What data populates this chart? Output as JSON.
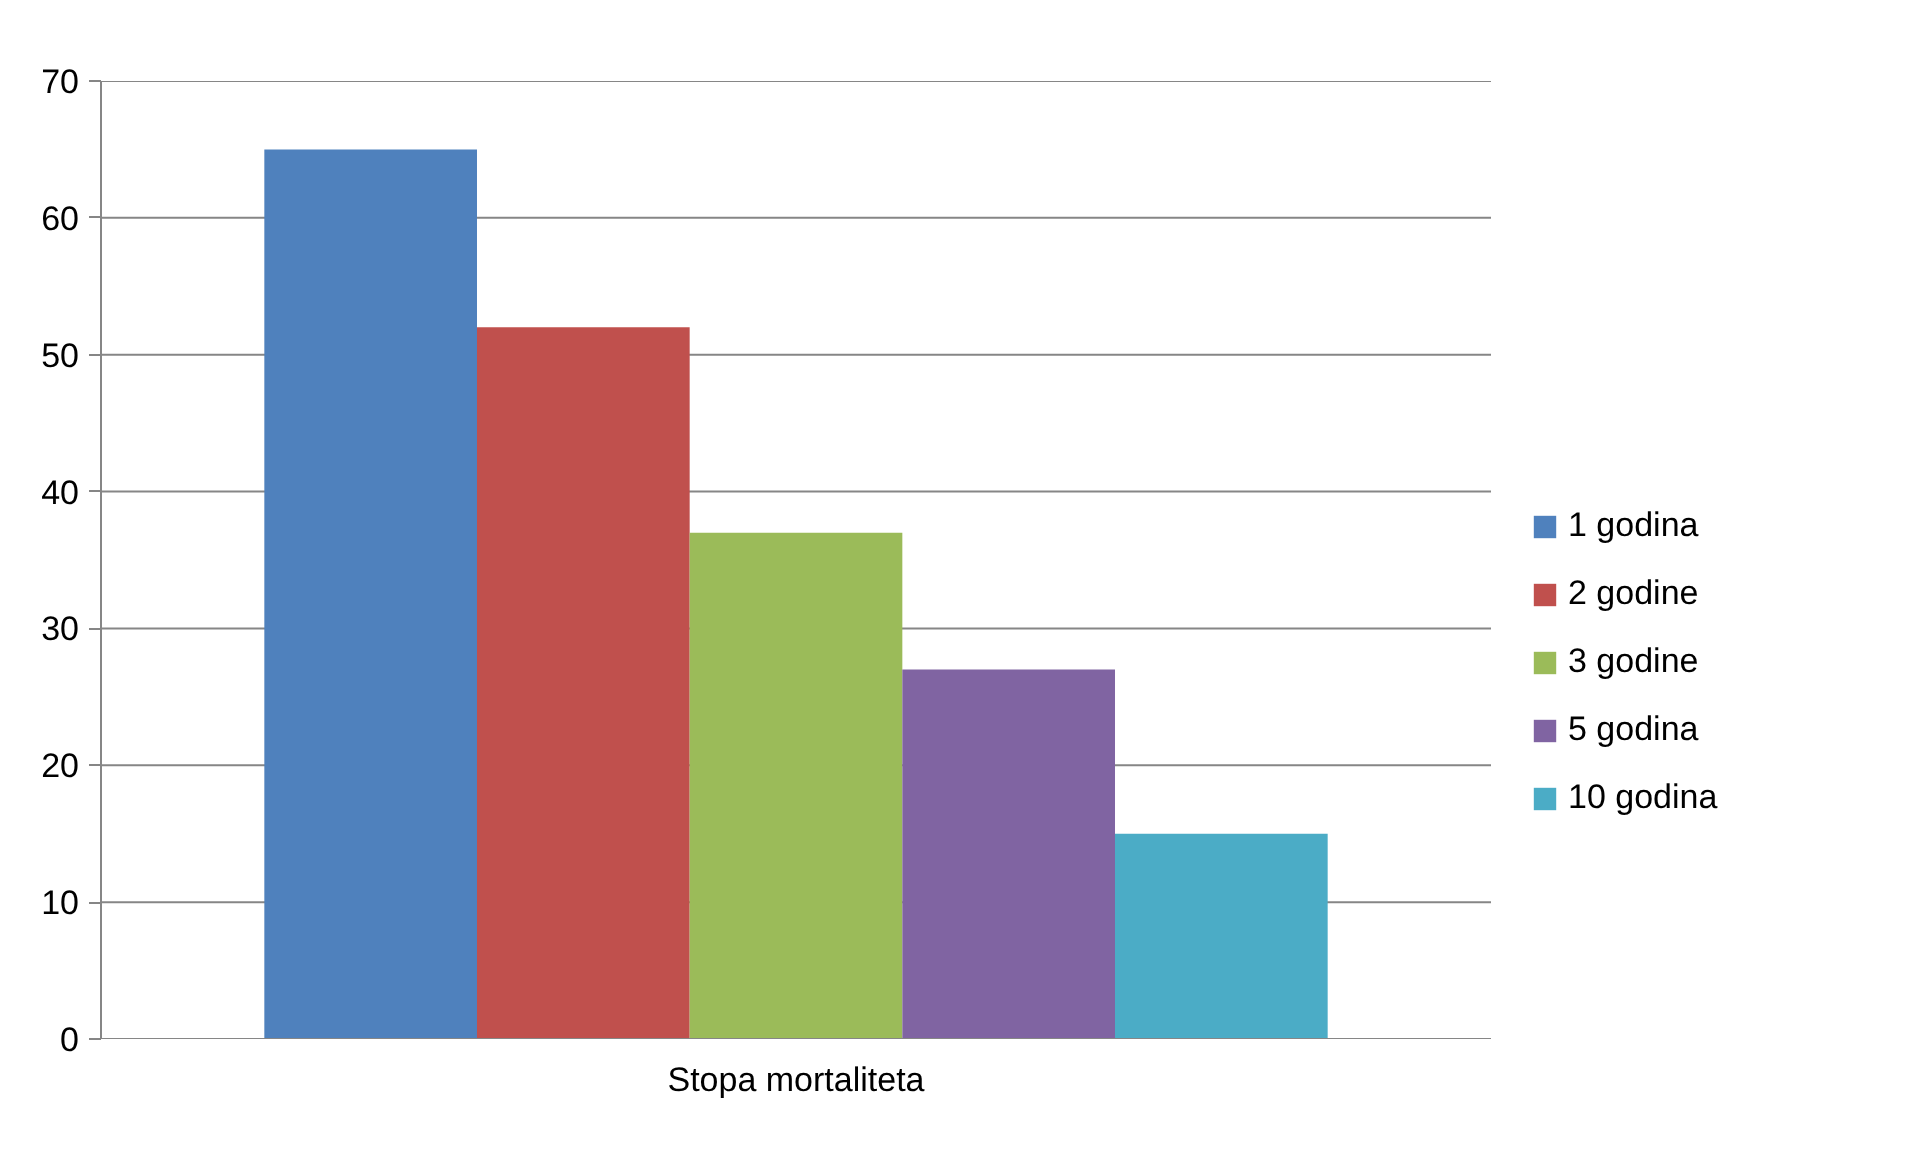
{
  "chart_data": {
    "type": "bar",
    "categories": [
      "Stopa mortaliteta"
    ],
    "series": [
      {
        "name": "1 godina",
        "color": "#4f81bd",
        "values": [
          65
        ]
      },
      {
        "name": "2 godine",
        "color": "#c0504d",
        "values": [
          52
        ]
      },
      {
        "name": "3 godine",
        "color": "#9bbb59",
        "values": [
          37
        ]
      },
      {
        "name": "5 godina",
        "color": "#8064a2",
        "values": [
          27
        ]
      },
      {
        "name": "10 godina",
        "color": "#4bacc6",
        "values": [
          15
        ]
      }
    ],
    "ylim": [
      0,
      70
    ],
    "yticks": [
      0,
      10,
      20,
      30,
      40,
      50,
      60,
      70
    ],
    "grid": "y",
    "legend": "right"
  }
}
